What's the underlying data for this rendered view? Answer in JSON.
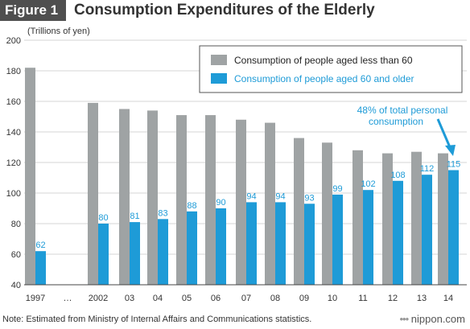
{
  "header": {
    "figure_label": "Figure 1",
    "title": "Consumption Expenditures of the Elderly"
  },
  "footer": {
    "note": "Note: Estimated from Ministry of Internal Affairs and Communications statistics.",
    "brand": "nippon.com"
  },
  "colors": {
    "under60": "#9fa3a4",
    "over60": "#1e9bd7",
    "axis_text": "#333333",
    "grid": "#d6d6d6"
  },
  "chart_data": {
    "type": "bar",
    "ylabel": "(Trillions of yen)",
    "ylim": [
      40,
      200
    ],
    "yticks": [
      40,
      60,
      80,
      100,
      120,
      140,
      160,
      180,
      200
    ],
    "categories": [
      "1997",
      "…",
      "2002",
      "03",
      "04",
      "05",
      "06",
      "07",
      "08",
      "09",
      "10",
      "11",
      "12",
      "13",
      "14"
    ],
    "grid": true,
    "legend_placement": "top-right",
    "series": [
      {
        "name": "Consumption of people aged less than 60",
        "values": [
          182,
          null,
          159,
          155,
          154,
          151,
          151,
          148,
          146,
          136,
          133,
          128,
          126,
          127,
          126
        ],
        "labels": [
          null,
          null,
          null,
          null,
          null,
          null,
          null,
          null,
          null,
          null,
          null,
          null,
          null,
          null,
          null
        ]
      },
      {
        "name": "Consumption of people aged 60 and older",
        "values": [
          62,
          null,
          80,
          81,
          83,
          88,
          90,
          94,
          94,
          93,
          99,
          102,
          108,
          112,
          115
        ],
        "labels": [
          "62",
          null,
          "80",
          "81",
          "83",
          "88",
          "90",
          "94",
          "94",
          "93",
          "99",
          "102",
          "108",
          "112",
          "115"
        ]
      }
    ],
    "annotation": {
      "line1": "48% of total personal",
      "line2": "consumption",
      "target_category": "14"
    }
  }
}
